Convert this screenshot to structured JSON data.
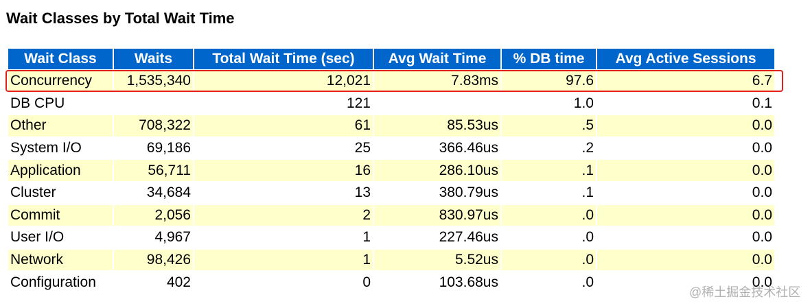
{
  "title": "Wait Classes by Total Wait Time",
  "columns": [
    "Wait Class",
    "Waits",
    "Total Wait Time (sec)",
    "Avg Wait Time",
    "% DB time",
    "Avg Active Sessions"
  ],
  "rows": [
    [
      "Concurrency",
      "1,535,340",
      "12,021",
      "7.83ms",
      "97.6",
      "6.7"
    ],
    [
      "DB CPU",
      "",
      "121",
      "",
      "1.0",
      "0.1"
    ],
    [
      "Other",
      "708,322",
      "61",
      "85.53us",
      ".5",
      "0.0"
    ],
    [
      "System I/O",
      "69,186",
      "25",
      "366.46us",
      ".2",
      "0.0"
    ],
    [
      "Application",
      "56,711",
      "16",
      "286.10us",
      ".1",
      "0.0"
    ],
    [
      "Cluster",
      "34,684",
      "13",
      "380.79us",
      ".1",
      "0.0"
    ],
    [
      "Commit",
      "2,056",
      "2",
      "830.97us",
      ".0",
      "0.0"
    ],
    [
      "User I/O",
      "4,967",
      "1",
      "227.46us",
      ".0",
      "0.0"
    ],
    [
      "Network",
      "98,426",
      "1",
      "5.52us",
      ".0",
      "0.0"
    ],
    [
      "Configuration",
      "402",
      "0",
      "103.68us",
      ".0",
      "0.0"
    ]
  ],
  "highlight_color": "#e0201a",
  "header_color": "#0066cc",
  "watermark": "@稀土掘金技术社区"
}
